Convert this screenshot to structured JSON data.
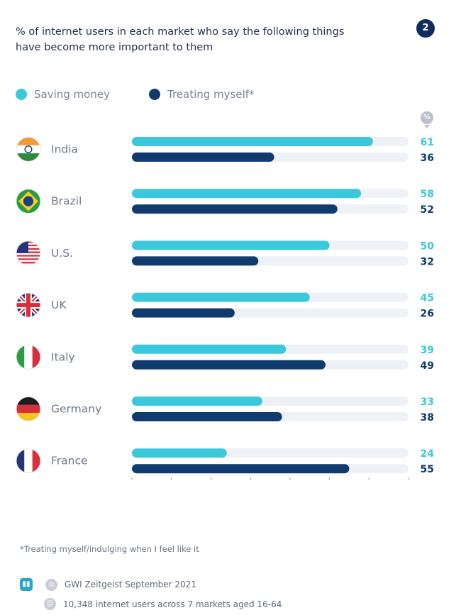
{
  "header": {
    "title": "% of internet users in each market who say the following things have become more important to them",
    "badge": "2"
  },
  "colors": {
    "saving": "#3cc8dc",
    "treating": "#0f3b6e",
    "track": "#eef1f5",
    "label": "#6f7888"
  },
  "chart_data": {
    "type": "bar",
    "orientation": "horizontal",
    "unit_label": "%",
    "categories": [
      "India",
      "Brazil",
      "U.S.",
      "UK",
      "Italy",
      "Germany",
      "France"
    ],
    "series": [
      {
        "name": "Saving money",
        "values": [
          61,
          58,
          50,
          45,
          39,
          33,
          24
        ]
      },
      {
        "name": "Treating myself*",
        "values": [
          36,
          52,
          32,
          26,
          49,
          38,
          55
        ]
      }
    ],
    "xlim": [
      0,
      70
    ]
  },
  "flags": [
    "india-flag-icon",
    "brazil-flag-icon",
    "us-flag-icon",
    "uk-flag-icon",
    "italy-flag-icon",
    "germany-flag-icon",
    "france-flag-icon"
  ],
  "footer": {
    "footnote": "*Treating myself/indulging when I feel like it",
    "source": "GWI Zeitgeist September 2021",
    "sample": "10,348 internet users across 7 markets aged 16-64"
  }
}
